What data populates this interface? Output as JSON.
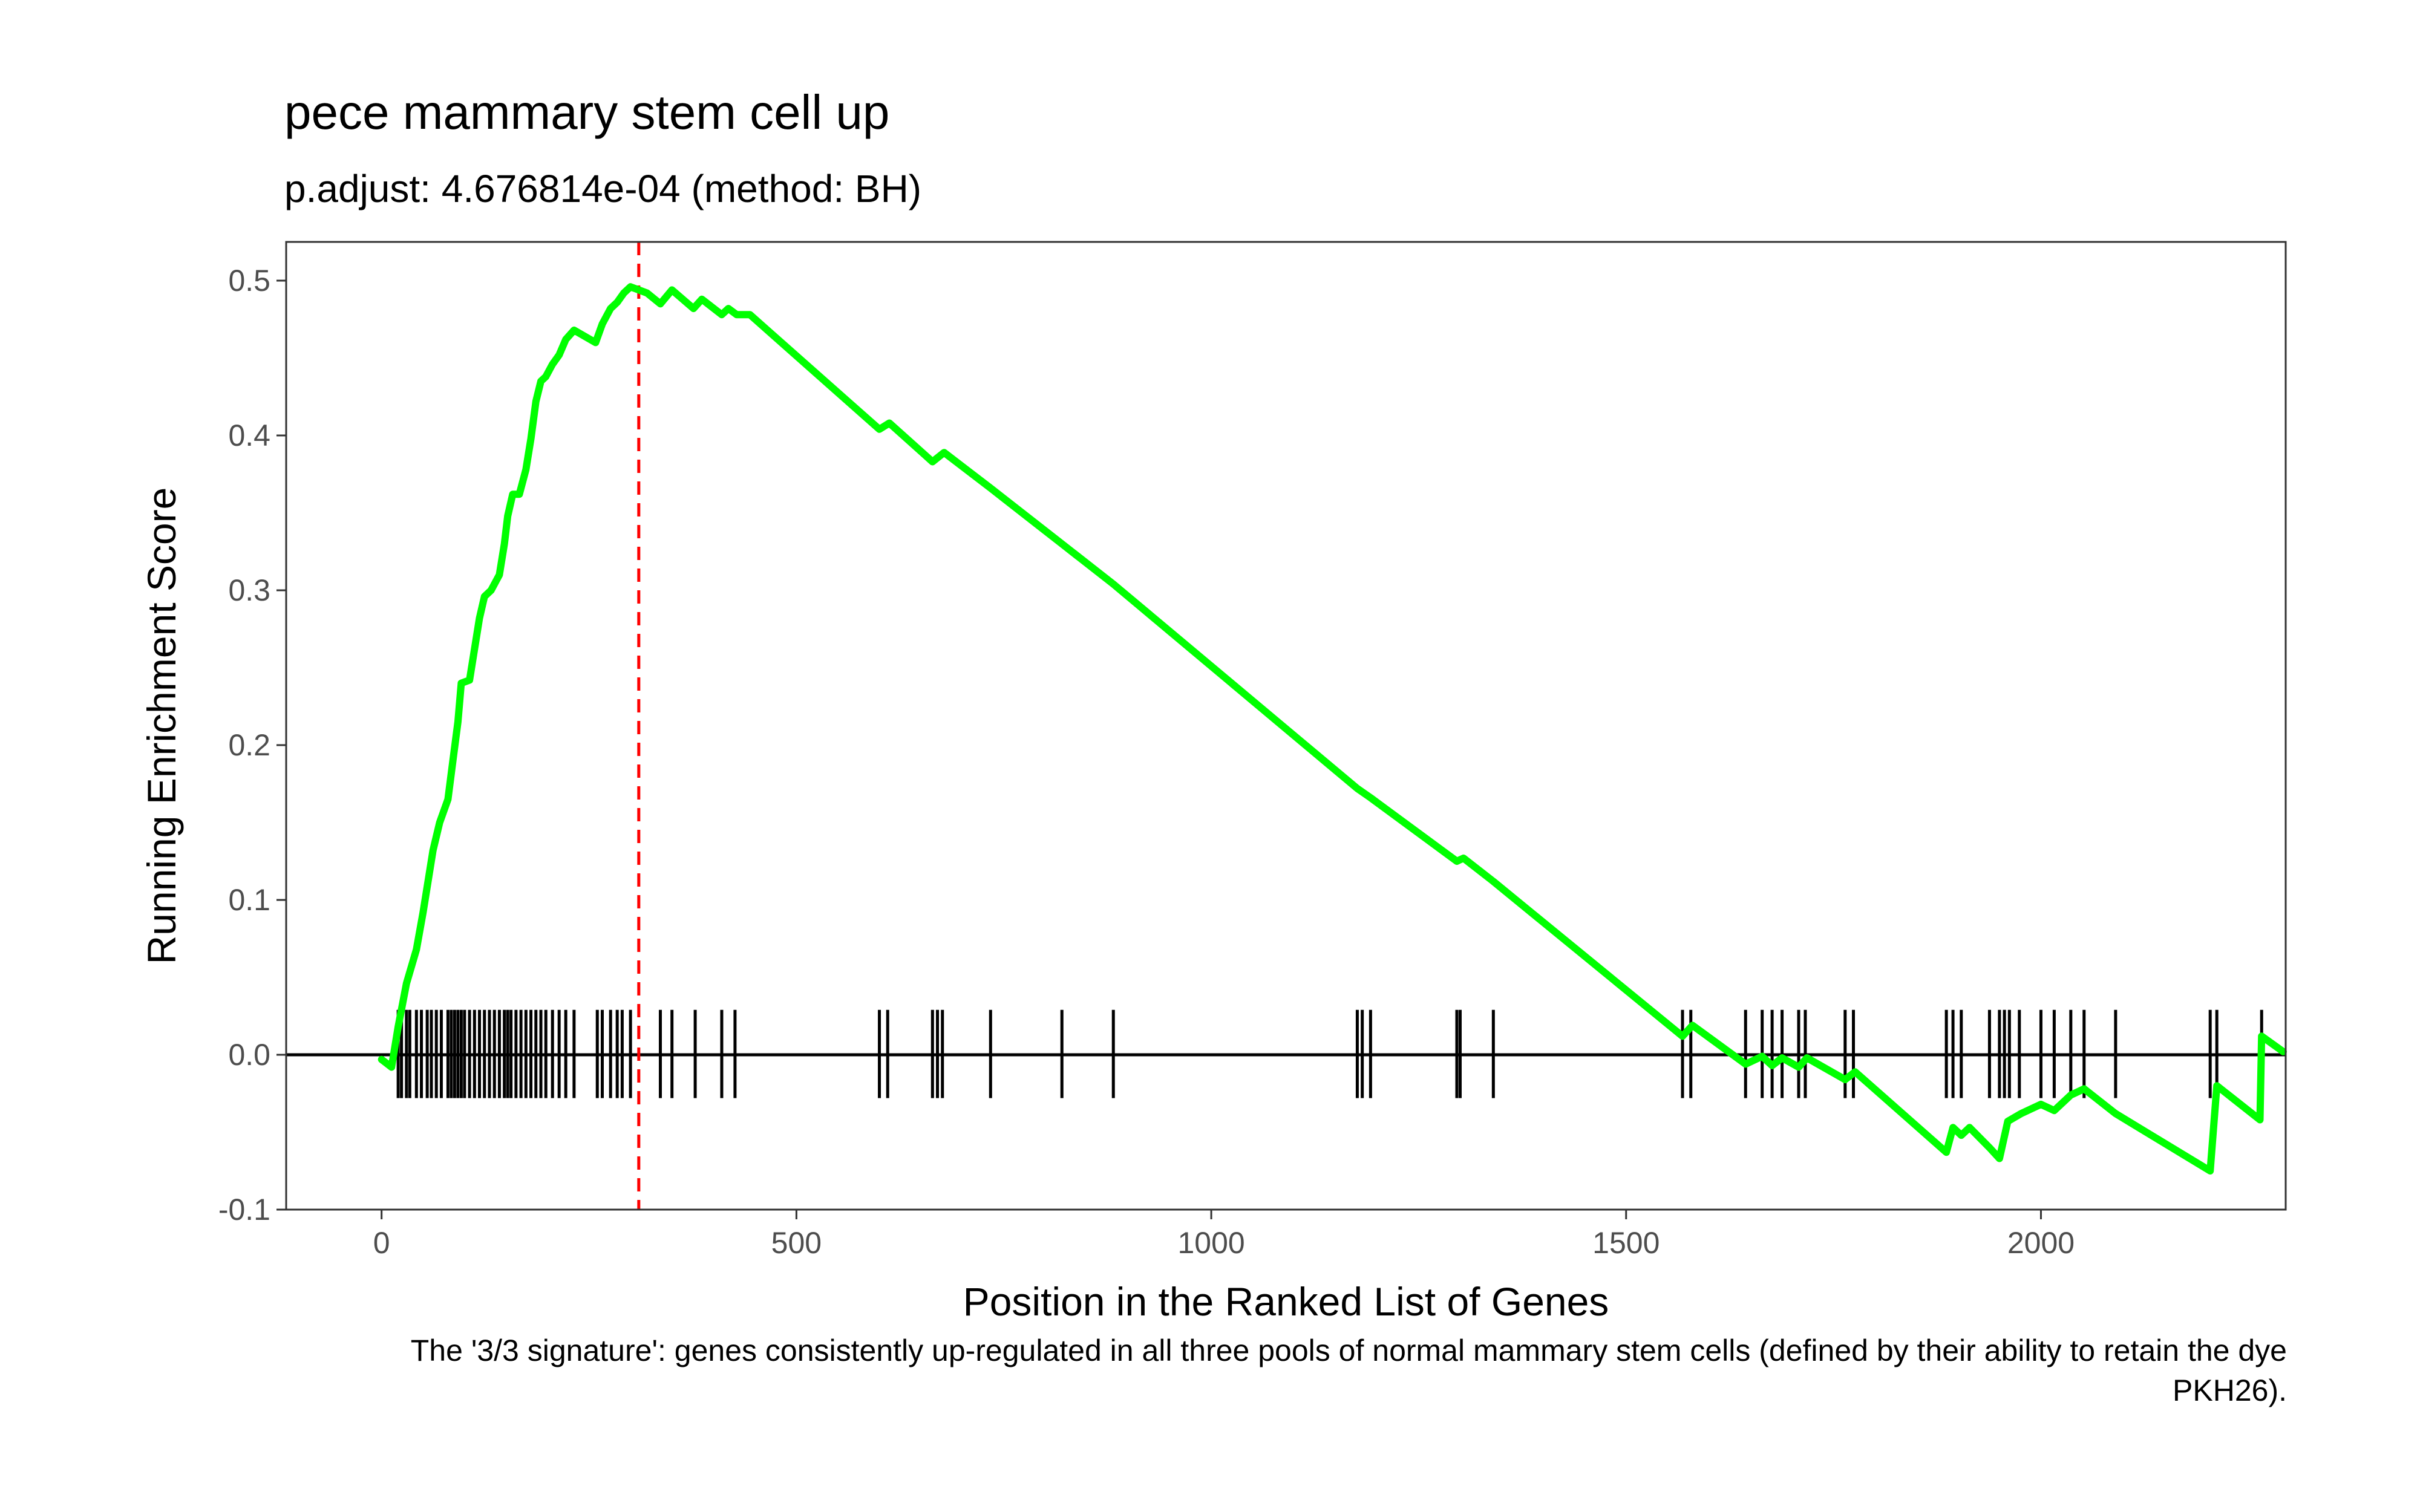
{
  "chart_data": {
    "type": "line",
    "title": "pece mammary stem cell up",
    "subtitle": "p.adjust: 4.676814e-04 (method: BH)",
    "xlabel": "Position in the Ranked List of Genes",
    "ylabel": "Running Enrichment Score",
    "caption": "The '3/3 signature': genes consistently up-regulated in all three pools of normal mammary stem cells (defined by their ability to retain the dye PKH26).",
    "xlim": [
      -115,
      2295
    ],
    "ylim": [
      -0.1,
      0.525
    ],
    "x_ticks": [
      0,
      500,
      1000,
      1500,
      2000
    ],
    "x_tick_labels": [
      "0",
      "500",
      "1000",
      "1500",
      "2000"
    ],
    "y_ticks": [
      -0.1,
      0.0,
      0.1,
      0.2,
      0.3,
      0.4,
      0.5
    ],
    "y_tick_labels": [
      "-0.1",
      "0.0",
      "0.1",
      "0.2",
      "0.3",
      "0.4",
      "0.5"
    ],
    "grid": false,
    "line_color": "#00FF00",
    "vline": {
      "x": 310,
      "color": "#FF0000",
      "style": "dashed"
    },
    "hline": {
      "y": 0
    },
    "gene_hits": [
      20,
      24,
      30,
      34,
      42,
      48,
      55,
      60,
      66,
      72,
      80,
      84,
      88,
      92,
      96,
      100,
      106,
      112,
      118,
      124,
      130,
      136,
      142,
      148,
      152,
      156,
      162,
      168,
      174,
      180,
      186,
      192,
      198,
      206,
      214,
      222,
      232,
      260,
      266,
      276,
      284,
      290,
      300,
      336,
      350,
      378,
      410,
      426,
      600,
      610,
      664,
      670,
      676,
      734,
      820,
      882,
      1176,
      1182,
      1192,
      1296,
      1300,
      1340,
      1568,
      1578,
      1644,
      1664,
      1676,
      1688,
      1708,
      1716,
      1764,
      1774,
      1886,
      1894,
      1904,
      1938,
      1950,
      1956,
      1962,
      1974,
      2000,
      2016,
      2036,
      2052,
      2090,
      2204,
      2212,
      2266
    ],
    "running_es": [
      {
        "x": 0,
        "y": -0.003
      },
      {
        "x": 12,
        "y": -0.008
      },
      {
        "x": 20,
        "y": 0.018
      },
      {
        "x": 30,
        "y": 0.046
      },
      {
        "x": 42,
        "y": 0.068
      },
      {
        "x": 50,
        "y": 0.092
      },
      {
        "x": 56,
        "y": 0.112
      },
      {
        "x": 62,
        "y": 0.132
      },
      {
        "x": 70,
        "y": 0.15
      },
      {
        "x": 80,
        "y": 0.165
      },
      {
        "x": 86,
        "y": 0.19
      },
      {
        "x": 92,
        "y": 0.215
      },
      {
        "x": 96,
        "y": 0.24
      },
      {
        "x": 106,
        "y": 0.242
      },
      {
        "x": 112,
        "y": 0.262
      },
      {
        "x": 118,
        "y": 0.282
      },
      {
        "x": 124,
        "y": 0.296
      },
      {
        "x": 132,
        "y": 0.3
      },
      {
        "x": 142,
        "y": 0.31
      },
      {
        "x": 148,
        "y": 0.33
      },
      {
        "x": 152,
        "y": 0.348
      },
      {
        "x": 158,
        "y": 0.362
      },
      {
        "x": 166,
        "y": 0.362
      },
      {
        "x": 174,
        "y": 0.378
      },
      {
        "x": 180,
        "y": 0.398
      },
      {
        "x": 186,
        "y": 0.422
      },
      {
        "x": 192,
        "y": 0.435
      },
      {
        "x": 198,
        "y": 0.438
      },
      {
        "x": 206,
        "y": 0.446
      },
      {
        "x": 214,
        "y": 0.452
      },
      {
        "x": 222,
        "y": 0.462
      },
      {
        "x": 232,
        "y": 0.468
      },
      {
        "x": 258,
        "y": 0.46
      },
      {
        "x": 266,
        "y": 0.472
      },
      {
        "x": 276,
        "y": 0.482
      },
      {
        "x": 284,
        "y": 0.486
      },
      {
        "x": 292,
        "y": 0.492
      },
      {
        "x": 300,
        "y": 0.496
      },
      {
        "x": 320,
        "y": 0.492
      },
      {
        "x": 336,
        "y": 0.485
      },
      {
        "x": 350,
        "y": 0.494
      },
      {
        "x": 376,
        "y": 0.482
      },
      {
        "x": 386,
        "y": 0.488
      },
      {
        "x": 410,
        "y": 0.478
      },
      {
        "x": 418,
        "y": 0.482
      },
      {
        "x": 428,
        "y": 0.478
      },
      {
        "x": 444,
        "y": 0.478
      },
      {
        "x": 600,
        "y": 0.404
      },
      {
        "x": 612,
        "y": 0.408
      },
      {
        "x": 664,
        "y": 0.383
      },
      {
        "x": 678,
        "y": 0.389
      },
      {
        "x": 734,
        "y": 0.366
      },
      {
        "x": 820,
        "y": 0.33
      },
      {
        "x": 882,
        "y": 0.304
      },
      {
        "x": 1176,
        "y": 0.172
      },
      {
        "x": 1192,
        "y": 0.166
      },
      {
        "x": 1296,
        "y": 0.125
      },
      {
        "x": 1304,
        "y": 0.127
      },
      {
        "x": 1340,
        "y": 0.112
      },
      {
        "x": 1568,
        "y": 0.012
      },
      {
        "x": 1580,
        "y": 0.019
      },
      {
        "x": 1644,
        "y": -0.006
      },
      {
        "x": 1664,
        "y": -0.001
      },
      {
        "x": 1676,
        "y": -0.007
      },
      {
        "x": 1688,
        "y": -0.002
      },
      {
        "x": 1708,
        "y": -0.008
      },
      {
        "x": 1718,
        "y": -0.002
      },
      {
        "x": 1764,
        "y": -0.016
      },
      {
        "x": 1776,
        "y": -0.011
      },
      {
        "x": 1886,
        "y": -0.063
      },
      {
        "x": 1894,
        "y": -0.047
      },
      {
        "x": 1904,
        "y": -0.052
      },
      {
        "x": 1914,
        "y": -0.047
      },
      {
        "x": 1938,
        "y": -0.06
      },
      {
        "x": 1950,
        "y": -0.067
      },
      {
        "x": 1960,
        "y": -0.043
      },
      {
        "x": 1976,
        "y": -0.038
      },
      {
        "x": 2000,
        "y": -0.032
      },
      {
        "x": 2016,
        "y": -0.036
      },
      {
        "x": 2036,
        "y": -0.026
      },
      {
        "x": 2052,
        "y": -0.022
      },
      {
        "x": 2090,
        "y": -0.038
      },
      {
        "x": 2204,
        "y": -0.075
      },
      {
        "x": 2212,
        "y": -0.02
      },
      {
        "x": 2264,
        "y": -0.042
      },
      {
        "x": 2266,
        "y": 0.012
      },
      {
        "x": 2292,
        "y": 0.002
      }
    ]
  }
}
